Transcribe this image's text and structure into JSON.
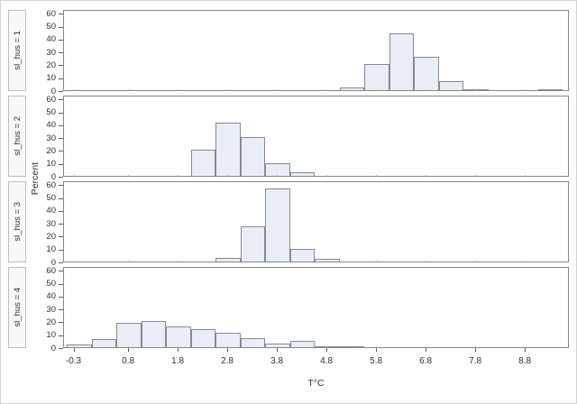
{
  "chart_data": {
    "type": "bar",
    "subtype": "paneled-histogram",
    "title": "",
    "xlabel": "T°C",
    "ylabel": "Percent",
    "x_ticks": [
      -0.3,
      0.8,
      1.8,
      2.8,
      3.8,
      4.8,
      5.8,
      6.8,
      7.8,
      8.8
    ],
    "y_ticks": [
      0,
      10,
      20,
      30,
      40,
      50,
      60
    ],
    "x_domain": [
      -0.51,
      9.69
    ],
    "y_domain": [
      0,
      63
    ],
    "bin_width": 0.5,
    "grid": false,
    "legend": "none",
    "panels": [
      {
        "label": "sl_hus = 1",
        "bins": [
          {
            "mid": 5.3,
            "pct": 2
          },
          {
            "mid": 5.8,
            "pct": 20
          },
          {
            "mid": 6.3,
            "pct": 44
          },
          {
            "mid": 6.8,
            "pct": 26
          },
          {
            "mid": 7.3,
            "pct": 7
          },
          {
            "mid": 7.8,
            "pct": 1
          },
          {
            "mid": 9.3,
            "pct": 1
          }
        ]
      },
      {
        "label": "sl_hus = 2",
        "bins": [
          {
            "mid": 2.3,
            "pct": 20
          },
          {
            "mid": 2.8,
            "pct": 41
          },
          {
            "mid": 3.3,
            "pct": 30
          },
          {
            "mid": 3.8,
            "pct": 10
          },
          {
            "mid": 4.3,
            "pct": 3
          }
        ]
      },
      {
        "label": "sl_hus = 3",
        "bins": [
          {
            "mid": 2.8,
            "pct": 3
          },
          {
            "mid": 3.3,
            "pct": 27
          },
          {
            "mid": 3.8,
            "pct": 57
          },
          {
            "mid": 4.3,
            "pct": 10
          },
          {
            "mid": 4.8,
            "pct": 2
          }
        ]
      },
      {
        "label": "sl_hus = 4",
        "bins": [
          {
            "mid": -0.2,
            "pct": 2
          },
          {
            "mid": 0.3,
            "pct": 6
          },
          {
            "mid": 0.8,
            "pct": 19
          },
          {
            "mid": 1.3,
            "pct": 20
          },
          {
            "mid": 1.8,
            "pct": 16
          },
          {
            "mid": 2.3,
            "pct": 14
          },
          {
            "mid": 2.8,
            "pct": 11
          },
          {
            "mid": 3.3,
            "pct": 7
          },
          {
            "mid": 3.8,
            "pct": 3
          },
          {
            "mid": 4.3,
            "pct": 5
          },
          {
            "mid": 4.8,
            "pct": 1
          },
          {
            "mid": 5.3,
            "pct": 1
          }
        ]
      }
    ],
    "colors": {
      "bar_fill": "#e9edf5",
      "bar_border": "#828a96",
      "panel_border": "#868686",
      "header_fill": "#f8f8f8",
      "header_border": "#bdbdbd",
      "figure_border": "#ccd4df",
      "tick_color": "#5a5a5a",
      "text_color": "#2e2e2e"
    }
  }
}
